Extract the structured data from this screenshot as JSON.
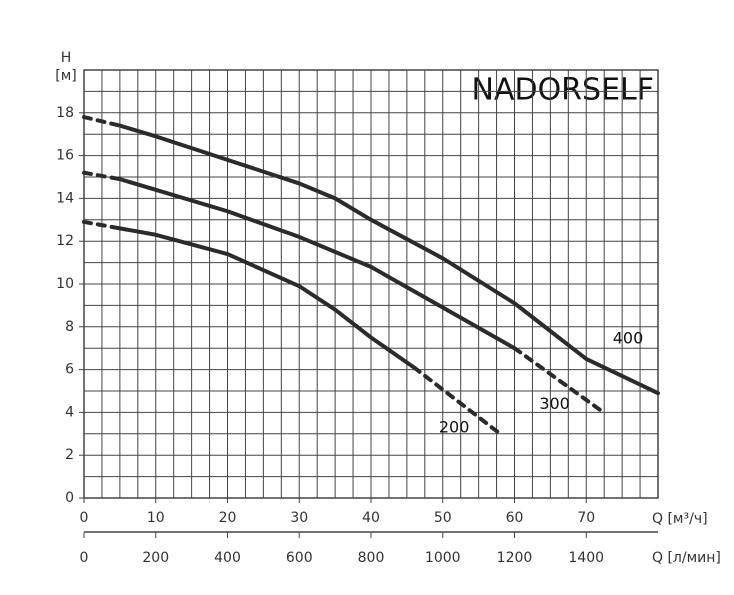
{
  "chart_data": {
    "type": "line",
    "watermark": "NADORSELF",
    "y_label": "H",
    "y_unit": "[м]",
    "x_label": "Q [м³/ч]",
    "x2_label": "Q [л/мин]",
    "xlim": [
      0,
      80
    ],
    "ylim": [
      0,
      20
    ],
    "x2lim": [
      0,
      1600
    ],
    "xticks": [
      0,
      10,
      20,
      30,
      40,
      50,
      60,
      70
    ],
    "yticks": [
      0,
      2,
      4,
      6,
      8,
      10,
      12,
      14,
      16,
      18
    ],
    "x2ticks": [
      0,
      200,
      400,
      600,
      800,
      1000,
      1200,
      1400
    ],
    "grid": {
      "x_step": 2.5,
      "y_step": 1
    },
    "color": "#2b2b2b",
    "series": [
      {
        "name": "400",
        "dashed_start": {
          "x": [
            0,
            5
          ],
          "values": [
            17.8,
            17.4
          ]
        },
        "solid": {
          "x": [
            5,
            10,
            20,
            30,
            35,
            40,
            50,
            60,
            70,
            80
          ],
          "values": [
            17.4,
            16.9,
            15.8,
            14.7,
            14.0,
            13.0,
            11.2,
            9.1,
            6.5,
            4.9
          ]
        }
      },
      {
        "name": "300",
        "dashed_start": {
          "x": [
            0,
            5
          ],
          "values": [
            15.2,
            14.9
          ]
        },
        "solid": {
          "x": [
            5,
            10,
            20,
            30,
            40,
            50,
            60
          ],
          "values": [
            14.9,
            14.4,
            13.4,
            12.2,
            10.8,
            8.9,
            7.0
          ]
        },
        "dashed_end": {
          "x": [
            60,
            72
          ],
          "values": [
            7.0,
            4.1
          ]
        }
      },
      {
        "name": "200",
        "dashed_start": {
          "x": [
            0,
            5
          ],
          "values": [
            12.9,
            12.6
          ]
        },
        "solid": {
          "x": [
            5,
            10,
            20,
            30,
            35,
            40,
            46
          ],
          "values": [
            12.6,
            12.3,
            11.4,
            9.9,
            8.8,
            7.5,
            6.1
          ]
        },
        "dashed_end": {
          "x": [
            46,
            58
          ],
          "values": [
            6.1,
            3.0
          ]
        }
      }
    ]
  }
}
